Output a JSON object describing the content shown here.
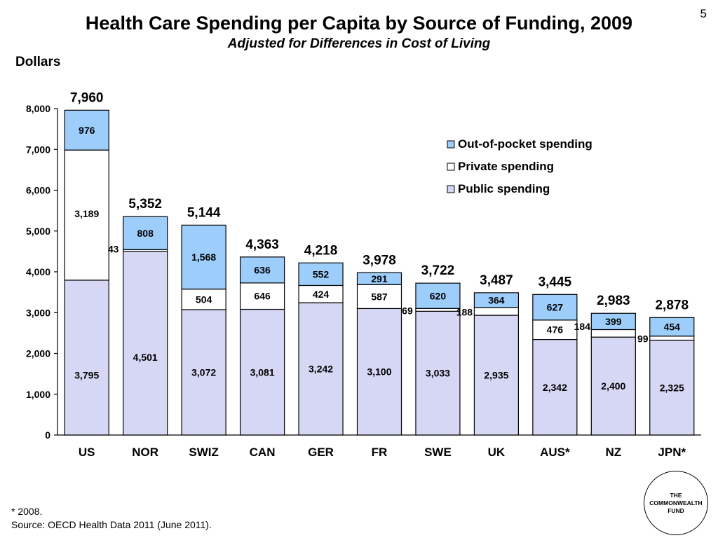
{
  "page_number": "5",
  "logo_text": "THE\nCOMMONWEALTH\nFUND",
  "footnote": "* 2008.",
  "source": "Source: OECD Health Data 2011 (June 2011).",
  "colors": {
    "public": "#d6d7f5",
    "private": "#ffffff",
    "out_of_pocket": "#9dcdfb",
    "outline": "#000000"
  },
  "chart_data": {
    "type": "bar",
    "stacked": true,
    "title": "Health Care Spending per Capita by Source of Funding, 2009",
    "subtitle": "Adjusted for Differences in Cost of Living",
    "ylabel": "Dollars",
    "xlabel": "",
    "ylim": [
      0,
      8000
    ],
    "yticks": [
      0,
      1000,
      2000,
      3000,
      4000,
      5000,
      6000,
      7000,
      8000
    ],
    "ytick_labels": [
      "0",
      "1,000",
      "2,000",
      "3,000",
      "4,000",
      "5,000",
      "6,000",
      "7,000",
      "8,000"
    ],
    "grid": false,
    "legend_position": "top-right",
    "categories": [
      "US",
      "NOR",
      "SWIZ",
      "CAN",
      "GER",
      "FR",
      "SWE",
      "UK",
      "AUS*",
      "NZ",
      "JPN*"
    ],
    "totals": [
      7960,
      5352,
      5144,
      4363,
      4218,
      3978,
      3722,
      3487,
      3445,
      2983,
      2878
    ],
    "total_labels": [
      "7,960",
      "5,352",
      "5,144",
      "4,363",
      "4,218",
      "3,978",
      "3,722",
      "3,487",
      "3,445",
      "2,983",
      "2,878"
    ],
    "series": [
      {
        "name": "Public spending",
        "key": "public",
        "values": [
          3795,
          4501,
          3072,
          3081,
          3242,
          3100,
          3033,
          2935,
          2342,
          2400,
          2325
        ],
        "labels": [
          "3,795",
          "4,501",
          "3,072",
          "3,081",
          "3,242",
          "3,100",
          "3,033",
          "2,935",
          "2,342",
          "2,400",
          "2,325"
        ]
      },
      {
        "name": "Private spending",
        "key": "private",
        "values": [
          3189,
          43,
          504,
          646,
          424,
          587,
          69,
          188,
          476,
          184,
          99
        ],
        "labels": [
          "3,189",
          "43",
          "504",
          "646",
          "424",
          "587",
          "69",
          "188",
          "476",
          "184",
          "99"
        ]
      },
      {
        "name": "Out-of-pocket spending",
        "key": "out_of_pocket",
        "values": [
          976,
          808,
          1568,
          636,
          552,
          291,
          620,
          364,
          627,
          399,
          454
        ],
        "labels": [
          "976",
          "808",
          "1,568",
          "636",
          "552",
          "291",
          "620",
          "364",
          "627",
          "399",
          "454"
        ]
      }
    ],
    "legend_order": [
      "out_of_pocket",
      "private",
      "public"
    ]
  }
}
